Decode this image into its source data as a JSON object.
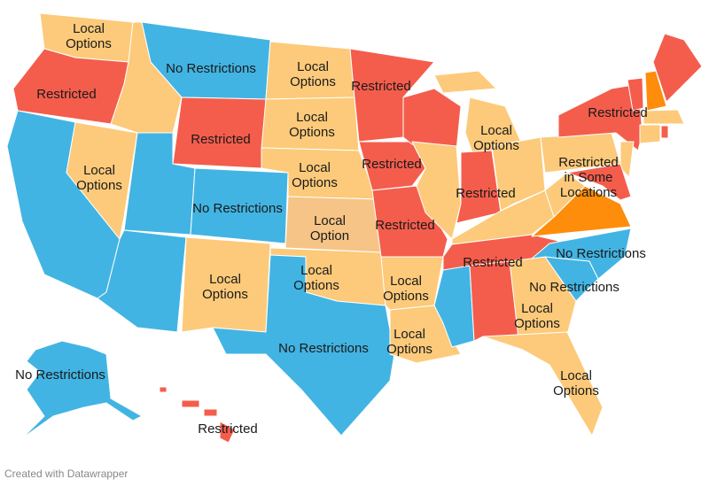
{
  "map": {
    "labels": [
      {
        "lines": [
          "Local",
          "Options"
        ]
      },
      {
        "lines": [
          "Restricted"
        ]
      },
      {
        "lines": [
          "No Restrictions"
        ]
      },
      {
        "lines": [
          "Local",
          "Options"
        ]
      },
      {
        "lines": [
          "Restricted"
        ]
      },
      {
        "lines": [
          "Restricted"
        ]
      },
      {
        "lines": [
          "Local",
          "Options"
        ]
      },
      {
        "lines": [
          "Restricted"
        ]
      },
      {
        "lines": [
          "Local",
          "Options"
        ]
      },
      {
        "lines": [
          "Restricted"
        ]
      },
      {
        "lines": [
          "Local",
          "Options"
        ]
      },
      {
        "lines": [
          "Local",
          "Options"
        ]
      },
      {
        "lines": [
          "Restricted"
        ]
      },
      {
        "lines": [
          "Restricted",
          "in Some",
          "Locations"
        ]
      },
      {
        "lines": [
          "No Restrictions"
        ]
      },
      {
        "lines": [
          "Local",
          "Option"
        ]
      },
      {
        "lines": [
          "Restricted"
        ]
      },
      {
        "lines": [
          "Restricted"
        ]
      },
      {
        "lines": [
          "No Restrictions"
        ]
      },
      {
        "lines": [
          "Local",
          "Options"
        ]
      },
      {
        "lines": [
          "Local",
          "Options"
        ]
      },
      {
        "lines": [
          "Local",
          "Options"
        ]
      },
      {
        "lines": [
          "No Restrictions"
        ]
      },
      {
        "lines": [
          "Local",
          "Options"
        ]
      },
      {
        "lines": [
          "No Restrictions"
        ]
      },
      {
        "lines": [
          "Local",
          "Options"
        ]
      },
      {
        "lines": [
          "No Restrictions"
        ]
      },
      {
        "lines": [
          "Local",
          "Options"
        ]
      },
      {
        "lines": [
          "Restricted"
        ]
      }
    ]
  },
  "credit": "Created with Datawrapper"
}
